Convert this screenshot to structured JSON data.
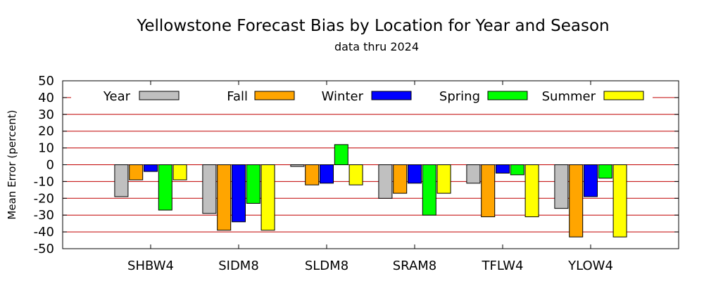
{
  "chart_data": {
    "type": "bar",
    "title": "Yellowstone Forecast Bias by Location for Year and Season",
    "subtitle": "data thru 2024",
    "xlabel": "",
    "ylabel": "Mean Error (percent)",
    "ylim": [
      -50,
      50
    ],
    "yticks": [
      "50",
      "40",
      "30",
      "20",
      "10",
      "0",
      "-10",
      "-20",
      "-30",
      "-40",
      "-50"
    ],
    "grid": "horizontal",
    "legend_position": "top",
    "categories": [
      "SHBW4",
      "SIDM8",
      "SLDM8",
      "SRAM8",
      "TFLW4",
      "YLOW4"
    ],
    "series": [
      {
        "name": "Year",
        "color": "#c0c0c0",
        "values": [
          -19,
          -29,
          -1,
          -20,
          -11,
          -26
        ]
      },
      {
        "name": "Fall",
        "color": "#ffa500",
        "values": [
          -9,
          -39,
          -12,
          -17,
          -31,
          -43
        ]
      },
      {
        "name": "Winter",
        "color": "#0000ff",
        "values": [
          -4,
          -34,
          -11,
          -11,
          -5,
          -19
        ]
      },
      {
        "name": "Spring",
        "color": "#00ff00",
        "values": [
          -27,
          -23,
          12,
          -30,
          -6,
          -8
        ]
      },
      {
        "name": "Summer",
        "color": "#ffff00",
        "values": [
          -9,
          -39,
          -12,
          -17,
          -31,
          -43
        ]
      }
    ],
    "gridline_color": "#c00000"
  }
}
